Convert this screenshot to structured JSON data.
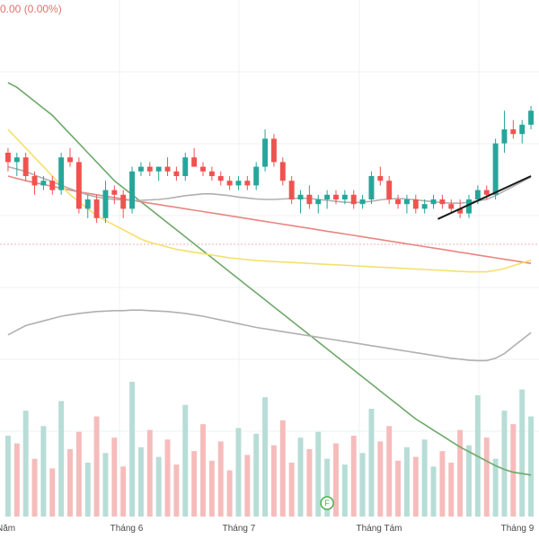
{
  "header": {
    "change_text": "0.00 (0.00%)"
  },
  "chart_data": {
    "type": "candlestick",
    "title": "",
    "xlabel": "",
    "ylabel": "",
    "grid": true,
    "x_ticks": [
      "Năm",
      "Tháng 6",
      "Tháng 7",
      "Tháng Tám",
      "Tháng 9"
    ],
    "price_range": [
      0,
      100
    ],
    "candles": [
      {
        "o": 75,
        "h": 76,
        "l": 71,
        "c": 73
      },
      {
        "o": 73,
        "h": 75,
        "l": 70,
        "c": 74
      },
      {
        "o": 74,
        "h": 75,
        "l": 69,
        "c": 70
      },
      {
        "o": 70,
        "h": 71,
        "l": 66,
        "c": 68
      },
      {
        "o": 68,
        "h": 70,
        "l": 67,
        "c": 69
      },
      {
        "o": 69,
        "h": 70,
        "l": 66,
        "c": 67
      },
      {
        "o": 67,
        "h": 75,
        "l": 66,
        "c": 74
      },
      {
        "o": 74,
        "h": 76,
        "l": 72,
        "c": 73
      },
      {
        "o": 73,
        "h": 74,
        "l": 62,
        "c": 63
      },
      {
        "o": 63,
        "h": 66,
        "l": 61,
        "c": 65
      },
      {
        "o": 65,
        "h": 66,
        "l": 60,
        "c": 61
      },
      {
        "o": 61,
        "h": 69,
        "l": 60,
        "c": 67
      },
      {
        "o": 67,
        "h": 68,
        "l": 64,
        "c": 66
      },
      {
        "o": 66,
        "h": 67,
        "l": 61,
        "c": 63
      },
      {
        "o": 63,
        "h": 72,
        "l": 62,
        "c": 71
      },
      {
        "o": 71,
        "h": 73,
        "l": 70,
        "c": 72
      },
      {
        "o": 72,
        "h": 73,
        "l": 70,
        "c": 71
      },
      {
        "o": 71,
        "h": 72,
        "l": 69,
        "c": 72
      },
      {
        "o": 72,
        "h": 74,
        "l": 70,
        "c": 71
      },
      {
        "o": 71,
        "h": 72,
        "l": 69,
        "c": 70
      },
      {
        "o": 70,
        "h": 75,
        "l": 69,
        "c": 74
      },
      {
        "o": 74,
        "h": 76,
        "l": 72,
        "c": 72
      },
      {
        "o": 72,
        "h": 73,
        "l": 70,
        "c": 71
      },
      {
        "o": 71,
        "h": 72,
        "l": 69,
        "c": 70
      },
      {
        "o": 70,
        "h": 71,
        "l": 68,
        "c": 69
      },
      {
        "o": 69,
        "h": 70,
        "l": 67,
        "c": 68
      },
      {
        "o": 68,
        "h": 70,
        "l": 67,
        "c": 69
      },
      {
        "o": 69,
        "h": 70,
        "l": 67,
        "c": 68
      },
      {
        "o": 68,
        "h": 73,
        "l": 67,
        "c": 72
      },
      {
        "o": 72,
        "h": 80,
        "l": 71,
        "c": 78
      },
      {
        "o": 78,
        "h": 79,
        "l": 72,
        "c": 73
      },
      {
        "o": 73,
        "h": 74,
        "l": 68,
        "c": 69
      },
      {
        "o": 69,
        "h": 70,
        "l": 64,
        "c": 65
      },
      {
        "o": 65,
        "h": 67,
        "l": 62,
        "c": 66
      },
      {
        "o": 66,
        "h": 68,
        "l": 63,
        "c": 64
      },
      {
        "o": 64,
        "h": 66,
        "l": 62,
        "c": 65
      },
      {
        "o": 65,
        "h": 67,
        "l": 63,
        "c": 66
      },
      {
        "o": 66,
        "h": 67,
        "l": 64,
        "c": 65
      },
      {
        "o": 65,
        "h": 67,
        "l": 64,
        "c": 66
      },
      {
        "o": 66,
        "h": 67,
        "l": 63,
        "c": 64
      },
      {
        "o": 64,
        "h": 66,
        "l": 63,
        "c": 65
      },
      {
        "o": 65,
        "h": 71,
        "l": 64,
        "c": 70
      },
      {
        "o": 70,
        "h": 72,
        "l": 68,
        "c": 69
      },
      {
        "o": 69,
        "h": 70,
        "l": 64,
        "c": 65
      },
      {
        "o": 65,
        "h": 66,
        "l": 63,
        "c": 64
      },
      {
        "o": 64,
        "h": 66,
        "l": 62,
        "c": 65
      },
      {
        "o": 65,
        "h": 66,
        "l": 62,
        "c": 63
      },
      {
        "o": 63,
        "h": 65,
        "l": 62,
        "c": 64
      },
      {
        "o": 64,
        "h": 66,
        "l": 63,
        "c": 65
      },
      {
        "o": 65,
        "h": 66,
        "l": 63,
        "c": 64
      },
      {
        "o": 64,
        "h": 65,
        "l": 62,
        "c": 63
      },
      {
        "o": 63,
        "h": 65,
        "l": 61,
        "c": 62
      },
      {
        "o": 62,
        "h": 66,
        "l": 61,
        "c": 65
      },
      {
        "o": 65,
        "h": 68,
        "l": 64,
        "c": 67
      },
      {
        "o": 67,
        "h": 68,
        "l": 65,
        "c": 66
      },
      {
        "o": 66,
        "h": 78,
        "l": 65,
        "c": 77
      },
      {
        "o": 77,
        "h": 84,
        "l": 75,
        "c": 80
      },
      {
        "o": 80,
        "h": 82,
        "l": 78,
        "c": 79
      },
      {
        "o": 79,
        "h": 82,
        "l": 77,
        "c": 81
      },
      {
        "o": 81,
        "h": 85,
        "l": 80,
        "c": 84
      }
    ],
    "volumes": [
      42,
      38,
      55,
      30,
      47,
      25,
      60,
      35,
      44,
      28,
      52,
      33,
      41,
      26,
      70,
      36,
      45,
      31,
      40,
      27,
      58,
      34,
      48,
      29,
      39,
      24,
      46,
      32,
      43,
      62,
      37,
      50,
      28,
      41,
      35,
      44,
      30,
      38,
      27,
      42,
      33,
      56,
      39,
      47,
      29,
      36,
      31,
      40,
      26,
      34,
      28,
      45,
      37,
      63,
      41,
      30,
      55,
      48,
      66,
      52
    ],
    "volume_up": [
      true,
      false,
      true,
      false,
      true,
      false,
      true,
      false,
      false,
      true,
      false,
      true,
      false,
      false,
      true,
      true,
      false,
      true,
      false,
      false,
      true,
      false,
      false,
      false,
      false,
      false,
      true,
      false,
      true,
      true,
      false,
      false,
      false,
      true,
      false,
      true,
      true,
      false,
      true,
      false,
      true,
      true,
      false,
      false,
      false,
      true,
      false,
      true,
      true,
      false,
      false,
      false,
      true,
      true,
      false,
      true,
      true,
      false,
      true,
      true
    ],
    "series": [
      {
        "values": [
          90,
          89,
          87.5,
          86,
          84.5,
          83,
          81,
          79,
          77,
          75,
          73,
          71,
          69,
          67.5,
          66,
          64.5,
          63,
          61.5,
          60,
          58.5,
          57,
          55.5,
          54,
          52.5,
          51,
          49.5,
          48,
          46.5,
          45,
          43.5,
          42,
          40.5,
          39,
          37.5,
          36,
          34.5,
          33,
          31.5,
          30,
          28.5,
          27,
          25.5,
          24,
          22.5,
          21,
          19.5,
          18,
          16.8,
          15.6,
          14.4,
          13.2,
          12,
          11,
          10,
          9,
          8,
          7.2,
          6.6,
          6.3,
          6
        ]
      },
      {
        "values": [
          70,
          69.5,
          69,
          68.6,
          68.2,
          67.8,
          67.4,
          67,
          66.6,
          66.3,
          66,
          65.7,
          65.4,
          65.1,
          64.8,
          64.5,
          64.2,
          63.9,
          63.6,
          63.3,
          63,
          62.7,
          62.4,
          62.1,
          61.8,
          61.5,
          61.2,
          60.9,
          60.6,
          60.3,
          60,
          59.7,
          59.4,
          59.1,
          58.8,
          58.5,
          58.2,
          57.9,
          57.6,
          57.3,
          57,
          56.7,
          56.4,
          56.1,
          55.8,
          55.5,
          55.2,
          54.9,
          54.6,
          54.3,
          54,
          53.7,
          53.4,
          53.1,
          52.8,
          52.5,
          52.2,
          51.9,
          51.6,
          51.3
        ]
      },
      {
        "values": [
          80,
          78,
          76,
          74,
          72,
          70,
          68,
          66,
          64.5,
          63,
          61.5,
          60.5,
          59.5,
          58.5,
          57.5,
          56.5,
          55.8,
          55.3,
          54.8,
          54.3,
          54,
          53.7,
          53.4,
          53.1,
          52.8,
          52.5,
          52.3,
          52.1,
          51.9,
          51.8,
          51.7,
          51.6,
          51.5,
          51.4,
          51.3,
          51.2,
          51.1,
          51,
          50.9,
          50.8,
          50.7,
          50.6,
          50.5,
          50.4,
          50.3,
          50.2,
          50.1,
          50,
          49.9,
          49.8,
          49.7,
          49.6,
          49.5,
          49.5,
          49.5,
          49.8,
          50.2,
          50.8,
          51.4,
          52
        ]
      },
      {
        "values": [
          72,
          71.5,
          71,
          70.2,
          69.5,
          68.8,
          68,
          67.3,
          66.6,
          66,
          65.5,
          65.2,
          65,
          64.9,
          64.8,
          64.8,
          64.9,
          65,
          65.2,
          65.5,
          65.8,
          66,
          66.2,
          66.2,
          66,
          65.8,
          65.5,
          65.3,
          65.1,
          65,
          65,
          65.1,
          65.2,
          65.3,
          65.2,
          65,
          64.8,
          64.6,
          64.4,
          64.3,
          64.4,
          64.6,
          64.9,
          65.1,
          65.2,
          65.1,
          64.9,
          64.7,
          64.5,
          64.3,
          64.2,
          64.2,
          64.4,
          64.7,
          65,
          65.8,
          66.8,
          67.8,
          68.8,
          69.8
        ]
      },
      {
        "values": [
          36,
          37,
          38,
          38.5,
          39,
          39.5,
          40,
          40.3,
          40.6,
          40.8,
          41,
          41.1,
          41.2,
          41.2,
          41.3,
          41.3,
          41.2,
          41.1,
          41,
          40.8,
          40.6,
          40.3,
          40,
          39.6,
          39.2,
          38.8,
          38.4,
          38,
          37.6,
          37.3,
          37,
          36.7,
          36.4,
          36.1,
          35.8,
          35.5,
          35.2,
          34.9,
          34.6,
          34.3,
          34,
          33.7,
          33.4,
          33.1,
          32.8,
          32.5,
          32.2,
          31.9,
          31.6,
          31.3,
          31,
          30.8,
          30.6,
          30.5,
          30.5,
          31,
          32,
          33.5,
          35,
          36.5
        ]
      }
    ],
    "trendline": {
      "from": [
        48.5,
        60.8
      ],
      "to": [
        59,
        70
      ]
    },
    "marker": {
      "label": "F",
      "at": 36
    },
    "colors": {
      "up": "#26a69a",
      "down": "#ef5350",
      "vol_up": "#b7ddd6",
      "vol_down": "#f6bcbc",
      "ma_green": "#6fa86a",
      "ma_red": "#e98682",
      "ma_yellow": "#f4e06b",
      "ma_gray": "#b0b0b0",
      "ref_line": "#f3b0b0",
      "trend": "#1a1a1a",
      "grid": "#eef0f3"
    }
  }
}
